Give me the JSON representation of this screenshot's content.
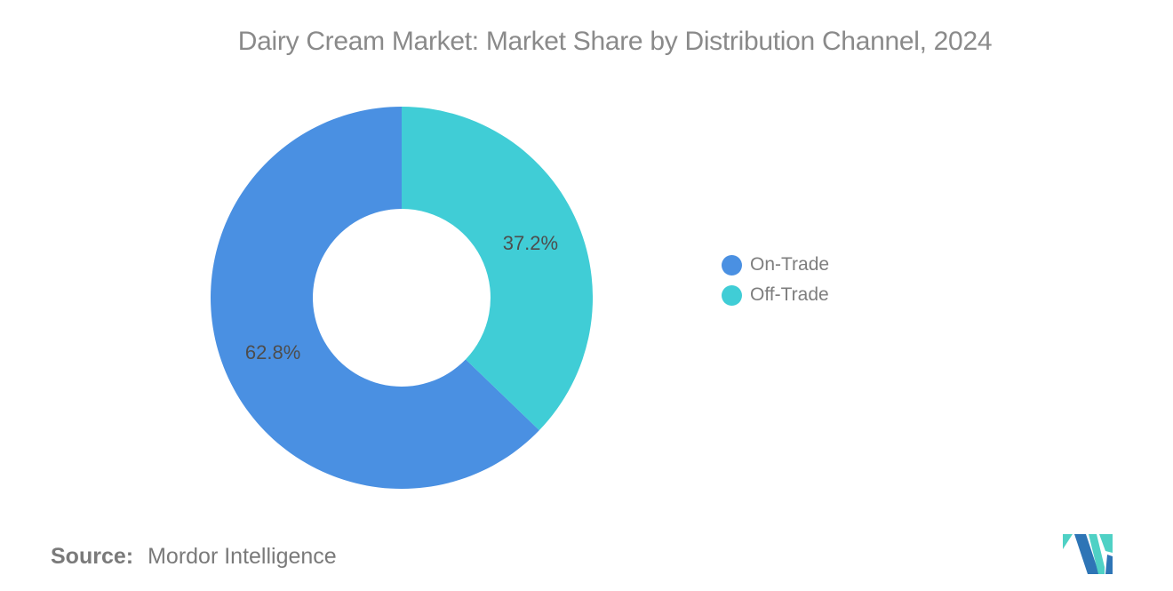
{
  "chart_data": {
    "type": "pie",
    "subtype": "donut",
    "title": "Dairy Cream Market: Market Share by Distribution Channel, 2024",
    "series": [
      {
        "name": "On-Trade",
        "value": 62.8,
        "color": "#4A90E2"
      },
      {
        "name": "Off-Trade",
        "value": 37.2,
        "color": "#40CDD6"
      }
    ],
    "value_suffix": "%",
    "inner_radius_ratio": 0.465,
    "start_angle": "top",
    "direction": "counterclockwise",
    "slice_label_color": "#4D4D4D",
    "legend_position": "right",
    "grid": false
  },
  "source": {
    "label": "Source:",
    "value": "Mordor Intelligence"
  },
  "logo": {
    "name": "mordor-intelligence-logo",
    "blue": "#2E75B6",
    "teal": "#4FD1C5"
  },
  "colors": {
    "title_text": "#8A8A8A",
    "legend_text": "#7E7E7E",
    "source_text": "#7A7A7A",
    "background": "#FFFFFF"
  }
}
